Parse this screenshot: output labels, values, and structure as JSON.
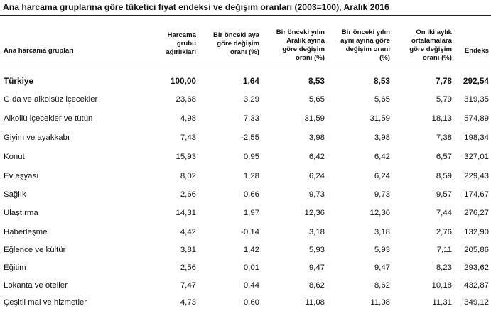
{
  "title": "Ana harcama gruplarına göre tüketici fiyat endeksi ve değişim oranları (2003=100), Aralık 2016",
  "headers": {
    "group": "Ana harcama grupları",
    "weight": [
      "Harcama",
      "grubu",
      "ağırlıkları"
    ],
    "monthly": [
      "Bir önceki aya",
      "göre değişim",
      "oranı (%)"
    ],
    "december": [
      "Bir önceki yılın",
      "Aralık ayına",
      "göre değişim",
      "oranı (%)"
    ],
    "same_month": [
      "Bir önceki yılın",
      "aynı ayına göre",
      "değişim oranı",
      "(%)"
    ],
    "twelve_month": [
      "On iki aylık",
      "ortalamalara",
      "göre değişim",
      "oranı (%)"
    ],
    "index": "Endeks"
  },
  "rows": [
    {
      "name": "Türkiye",
      "weight": "100,00",
      "monthly": "1,64",
      "december": "8,53",
      "same_month": "8,53",
      "twelve_month": "7,78",
      "index": "292,54"
    },
    {
      "name": "Gıda ve alkolsüz içecekler",
      "weight": "23,68",
      "monthly": "3,29",
      "december": "5,65",
      "same_month": "5,65",
      "twelve_month": "5,79",
      "index": "319,35"
    },
    {
      "name": "Alkollü içecekler ve tütün",
      "weight": "4,98",
      "monthly": "7,33",
      "december": "31,59",
      "same_month": "31,59",
      "twelve_month": "18,13",
      "index": "574,89"
    },
    {
      "name": "Giyim ve ayakkabı",
      "weight": "7,43",
      "monthly": "-2,55",
      "december": "3,98",
      "same_month": "3,98",
      "twelve_month": "7,38",
      "index": "198,34"
    },
    {
      "name": "Konut",
      "weight": "15,93",
      "monthly": "0,95",
      "december": "6,42",
      "same_month": "6,42",
      "twelve_month": "6,57",
      "index": "327,01"
    },
    {
      "name": "Ev eşyası",
      "weight": "8,02",
      "monthly": "1,28",
      "december": "6,24",
      "same_month": "6,24",
      "twelve_month": "8,59",
      "index": "229,43"
    },
    {
      "name": "Sağlık",
      "weight": "2,66",
      "monthly": "0,66",
      "december": "9,73",
      "same_month": "9,73",
      "twelve_month": "9,57",
      "index": "174,67"
    },
    {
      "name": "Ulaştırma",
      "weight": "14,31",
      "monthly": "1,97",
      "december": "12,36",
      "same_month": "12,36",
      "twelve_month": "7,44",
      "index": "276,27"
    },
    {
      "name": "Haberleşme",
      "weight": "4,42",
      "monthly": "-0,14",
      "december": "3,18",
      "same_month": "3,18",
      "twelve_month": "2,76",
      "index": "132,90"
    },
    {
      "name": "Eğlence ve kültür",
      "weight": "3,81",
      "monthly": "1,42",
      "december": "5,93",
      "same_month": "5,93",
      "twelve_month": "7,11",
      "index": "205,86"
    },
    {
      "name": "Eğitim",
      "weight": "2,56",
      "monthly": "0,01",
      "december": "9,47",
      "same_month": "9,47",
      "twelve_month": "8,23",
      "index": "293,62"
    },
    {
      "name": "Lokanta ve oteller",
      "weight": "7,47",
      "monthly": "0,44",
      "december": "8,62",
      "same_month": "8,62",
      "twelve_month": "10,18",
      "index": "432,87"
    },
    {
      "name": "Çeşitli mal ve hizmetler",
      "weight": "4,73",
      "monthly": "0,60",
      "december": "11,08",
      "same_month": "11,08",
      "twelve_month": "11,31",
      "index": "349,12"
    }
  ]
}
